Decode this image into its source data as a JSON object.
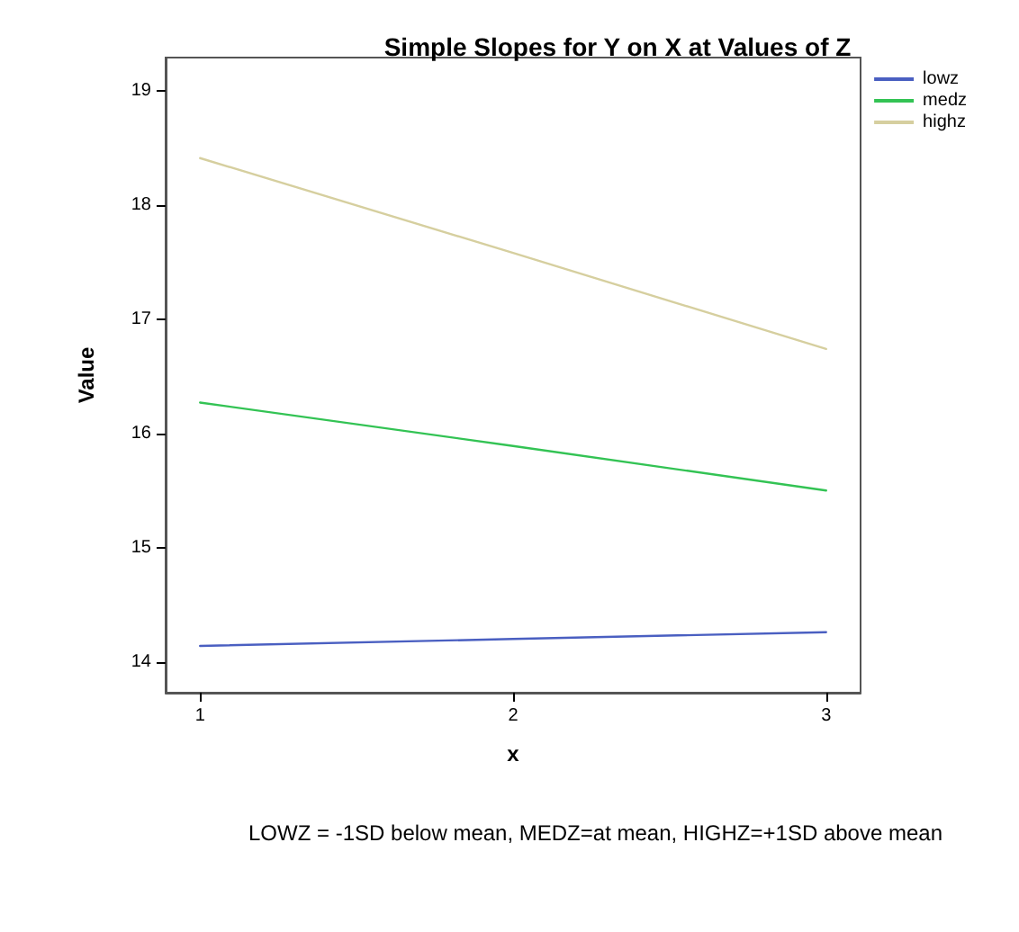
{
  "chart_data": {
    "type": "line",
    "title": "Simple Slopes for Y on X at Values of Z",
    "xlabel": "x",
    "ylabel": "Value",
    "x": [
      1,
      2,
      3
    ],
    "series": [
      {
        "name": "lowz",
        "color": "#4a5fc1",
        "values": [
          14.14,
          14.2,
          14.26
        ]
      },
      {
        "name": "medz",
        "color": "#33c354",
        "values": [
          16.27,
          15.89,
          15.5
        ]
      },
      {
        "name": "highz",
        "color": "#d6cf9f",
        "values": [
          18.41,
          17.58,
          16.74
        ]
      }
    ],
    "xlim": [
      0.89,
      3.11
    ],
    "xticks": [
      1,
      2,
      3
    ],
    "ylim": [
      13.73,
      19.29
    ],
    "yticks": [
      14,
      15,
      16,
      17,
      18,
      19
    ],
    "legend": "top right",
    "grid": false,
    "marker": "none",
    "line_style": "solid",
    "annotations": [
      "LOWZ = -1SD below mean, MEDZ=at mean, HIGHZ=+1SD above mean"
    ]
  }
}
